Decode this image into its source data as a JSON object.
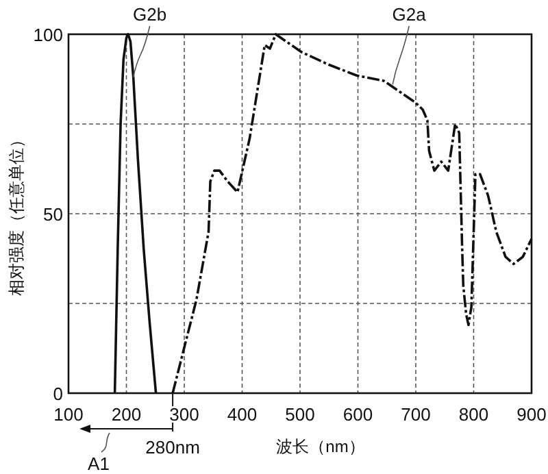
{
  "chart_data": {
    "type": "line",
    "ylabel": "相对强度（任意单位）",
    "xlabel": "波长（nm）",
    "xlim": [
      100,
      900
    ],
    "xticks": [
      100,
      200,
      300,
      400,
      500,
      600,
      700,
      800,
      900
    ],
    "ylim": [
      0,
      100
    ],
    "yticks": [
      0,
      {
        "value": 25,
        "label": null
      },
      50,
      {
        "value": 75,
        "label": null
      },
      100
    ],
    "grid": true,
    "series": [
      {
        "color": "#111111",
        "line_style": "solid",
        "x": [
          180,
          185,
          190,
          195,
          200,
          203,
          207,
          212,
          220,
          230,
          240,
          251
        ],
        "values": [
          0,
          40,
          75,
          93,
          99,
          100,
          98,
          88,
          65,
          40,
          20,
          0
        ]
      },
      {
        "color": "#111111",
        "line_style": "dashdot",
        "x": [
          280,
          302,
          321,
          342,
          345,
          352,
          361,
          375,
          392,
          413,
          432,
          439,
          448,
          458,
          503,
          550,
          598,
          645,
          699,
          712,
          720,
          723,
          732,
          744,
          756,
          768,
          775,
          780,
          782,
          787,
          791,
          796,
          800,
          803,
          811,
          825,
          839,
          855,
          869,
          885,
          900
        ],
        "values": [
          0,
          14,
          26,
          45,
          59,
          62,
          62,
          59,
          56,
          71,
          90,
          97,
          96,
          100,
          95,
          91.5,
          88.5,
          87,
          81,
          79,
          76,
          67.5,
          62,
          64.5,
          62,
          75,
          72.5,
          41,
          30,
          22,
          19,
          24,
          45,
          61,
          61,
          55,
          45,
          38,
          36,
          38,
          43
        ]
      }
    ],
    "annotations": [
      {
        "text": "G2b",
        "x": 212,
        "y": 88
      },
      {
        "text": "G2a",
        "x": 660,
        "y": 86
      },
      {
        "text": "280nm",
        "x": 280,
        "y": 0
      },
      "A1"
    ]
  }
}
